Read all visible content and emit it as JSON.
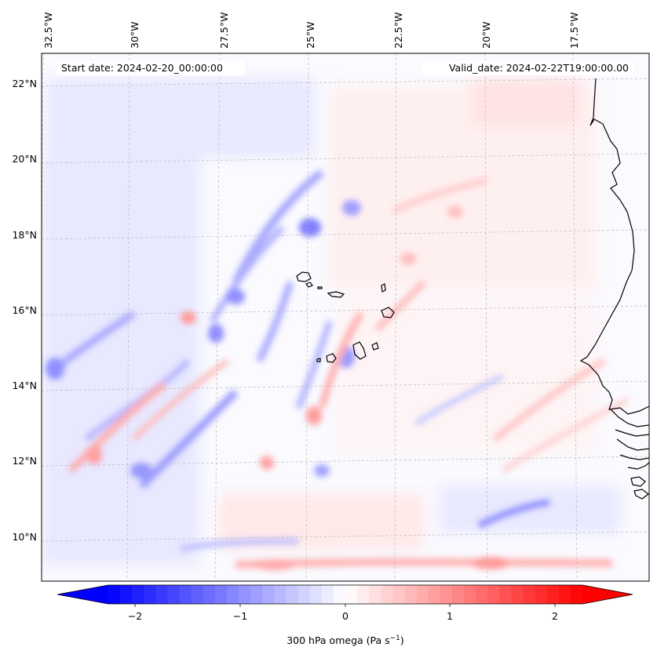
{
  "map": {
    "start_date": "Start date: 2024-02-20_00:00:00",
    "valid_date": "Valid_date: 2024-02-22T19:00:00.00",
    "lon_labels": [
      "32.5°W",
      "30°W",
      "27.5°W",
      "25°W",
      "22.5°W",
      "20°W",
      "17.5°W"
    ],
    "lat_labels": [
      "22°N",
      "20°N",
      "18°N",
      "16°N",
      "14°N",
      "12°N",
      "10°N"
    ],
    "field": "300 hPa omega",
    "colors": {
      "negative": "#0000ff",
      "zero": "#ffffff",
      "positive": "#ff0000",
      "coast": "#000000"
    }
  },
  "colorbar": {
    "ticks": [
      "−2",
      "−1",
      "0",
      "1",
      "2"
    ],
    "label_main": "300 hPa omega (Pa s",
    "label_sup": "−1",
    "label_end": ")",
    "vmin": -2.6,
    "vmax": 2.6
  }
}
